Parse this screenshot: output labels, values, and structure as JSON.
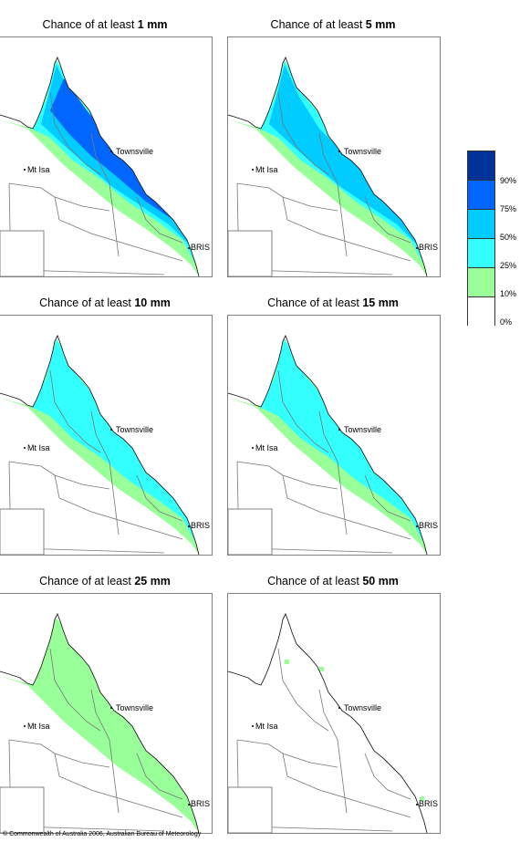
{
  "panels": [
    {
      "prefix": "Chance of at least ",
      "amount": "1 mm",
      "level": 4
    },
    {
      "prefix": "Chance of at least ",
      "amount": "5 mm",
      "level": 3
    },
    {
      "prefix": "Chance of at least ",
      "amount": "10 mm",
      "level": 2
    },
    {
      "prefix": "Chance of at least ",
      "amount": "15 mm",
      "level": 2
    },
    {
      "prefix": "Chance of at least ",
      "amount": "25 mm",
      "level": 1
    },
    {
      "prefix": "Chance of at least ",
      "amount": "50 mm",
      "level": 0
    }
  ],
  "cities": {
    "townsville": "Townsville",
    "mt_isa": "Mt Isa",
    "brisbane": "BRIS"
  },
  "legend": {
    "colors": [
      "#003399",
      "#0066ff",
      "#00ccff",
      "#33ffff",
      "#99ff99",
      "#ffffff"
    ],
    "labels": [
      "90%",
      "75%",
      "50%",
      "25%",
      "10%",
      "0%"
    ]
  },
  "copyright": "© Commonwealth of Australia 2006, Australian Bureau of Meteorology"
}
